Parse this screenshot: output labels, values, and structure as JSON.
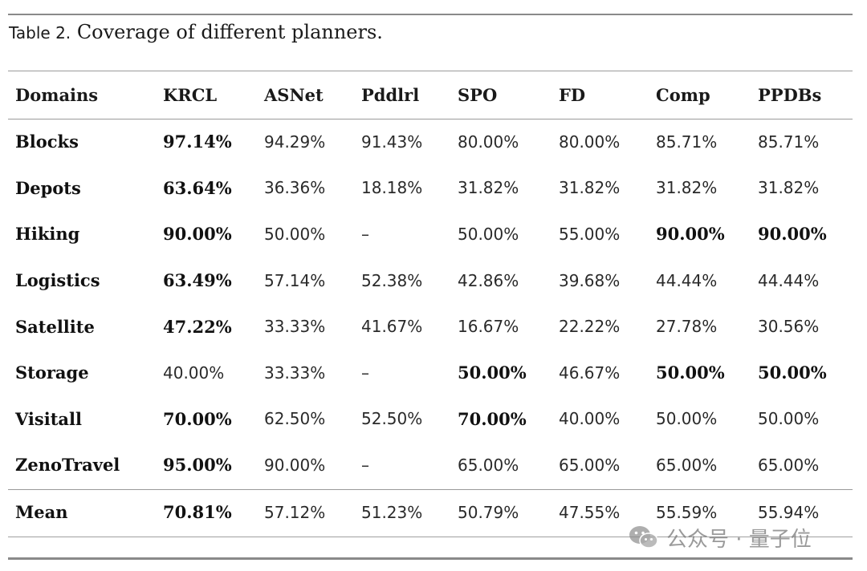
{
  "caption": {
    "label": "Table 2.",
    "text": "Coverage of different planners."
  },
  "headers": [
    "Domains",
    "KRCL",
    "ASNet",
    "Pddlrl",
    "SPO",
    "FD",
    "Comp",
    "PPDBs"
  ],
  "rows": [
    {
      "cells": [
        "Blocks",
        "97.14%",
        "94.29%",
        "91.43%",
        "80.00%",
        "80.00%",
        "85.71%",
        "85.71%"
      ],
      "bold": [
        1
      ]
    },
    {
      "cells": [
        "Depots",
        "63.64%",
        "36.36%",
        "18.18%",
        "31.82%",
        "31.82%",
        "31.82%",
        "31.82%"
      ],
      "bold": [
        1
      ]
    },
    {
      "cells": [
        "Hiking",
        "90.00%",
        "50.00%",
        "–",
        "50.00%",
        "55.00%",
        "90.00%",
        "90.00%"
      ],
      "bold": [
        1,
        6,
        7
      ]
    },
    {
      "cells": [
        "Logistics",
        "63.49%",
        "57.14%",
        "52.38%",
        "42.86%",
        "39.68%",
        "44.44%",
        "44.44%"
      ],
      "bold": [
        1
      ]
    },
    {
      "cells": [
        "Satellite",
        "47.22%",
        "33.33%",
        "41.67%",
        "16.67%",
        "22.22%",
        "27.78%",
        "30.56%"
      ],
      "bold": [
        1
      ]
    },
    {
      "cells": [
        "Storage",
        "40.00%",
        "33.33%",
        "–",
        "50.00%",
        "46.67%",
        "50.00%",
        "50.00%"
      ],
      "bold": [
        4,
        6,
        7
      ]
    },
    {
      "cells": [
        "Visitall",
        "70.00%",
        "62.50%",
        "52.50%",
        "70.00%",
        "40.00%",
        "50.00%",
        "50.00%"
      ],
      "bold": [
        1,
        4
      ]
    },
    {
      "cells": [
        "ZenoTravel",
        "95.00%",
        "90.00%",
        "–",
        "65.00%",
        "65.00%",
        "65.00%",
        "65.00%"
      ],
      "bold": [
        1
      ]
    }
  ],
  "mean": {
    "cells": [
      "Mean",
      "70.81%",
      "57.12%",
      "51.23%",
      "50.79%",
      "47.55%",
      "55.59%",
      "55.94%"
    ],
    "bold": [
      1
    ]
  },
  "watermark": {
    "text": "公众号 · 量子位",
    "icon": "wechat-icon"
  }
}
